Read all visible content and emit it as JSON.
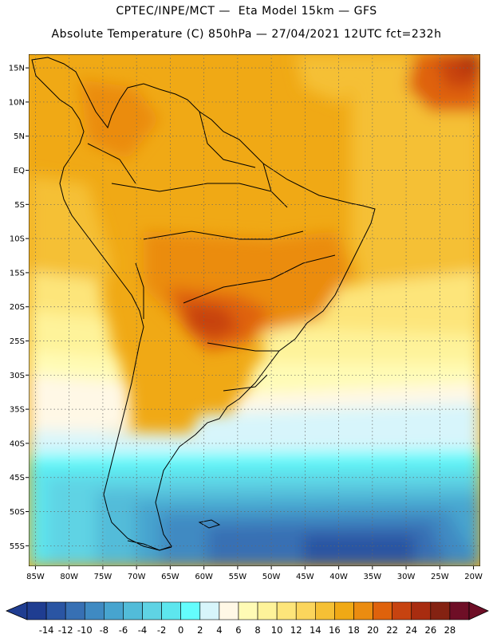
{
  "header": {
    "line1": "CPTEC/INPE/MCT —  Eta Model 15km — GFS",
    "line2": "Absolute Temperature (C) 850hPa — 27/04/2021 12UTC fct=232h"
  },
  "map": {
    "lon_labels": [
      "85W",
      "80W",
      "75W",
      "70W",
      "65W",
      "60W",
      "55W",
      "50W",
      "45W",
      "40W",
      "35W",
      "30W",
      "25W",
      "20W"
    ],
    "lon_values": [
      -85,
      -80,
      -75,
      -70,
      -65,
      -60,
      -55,
      -50,
      -45,
      -40,
      -35,
      -30,
      -25,
      -20
    ],
    "lat_labels": [
      "15N",
      "10N",
      "5N",
      "EQ",
      "5S",
      "10S",
      "15S",
      "20S",
      "25S",
      "30S",
      "35S",
      "40S",
      "45S",
      "50S",
      "55S"
    ],
    "lat_values": [
      15,
      10,
      5,
      0,
      -5,
      -10,
      -15,
      -20,
      -25,
      -30,
      -35,
      -40,
      -45,
      -50,
      -55
    ],
    "lon_range": [
      -86,
      -19
    ],
    "lat_range": [
      -58,
      17
    ]
  },
  "colorbar": {
    "labels": [
      "-14",
      "-12",
      "-10",
      "-8",
      "-6",
      "-4",
      "-2",
      "0",
      "2",
      "4",
      "6",
      "8",
      "10",
      "12",
      "14",
      "16",
      "18",
      "20",
      "22",
      "24",
      "26",
      "28"
    ],
    "colors": [
      "#1f3d91",
      "#2a55a3",
      "#3770b4",
      "#3f8ac2",
      "#47a4cf",
      "#52bcd9",
      "#5fd3e4",
      "#5de6ee",
      "#64fdfd",
      "#d7f5fb",
      "#fff8e6",
      "#fffbb5",
      "#fef39a",
      "#fde57a",
      "#fbd55c",
      "#f5c035",
      "#f0a915",
      "#eb8c10",
      "#df620c",
      "#c74310",
      "#a82c10",
      "#842212",
      "#6e0e26"
    ]
  }
}
